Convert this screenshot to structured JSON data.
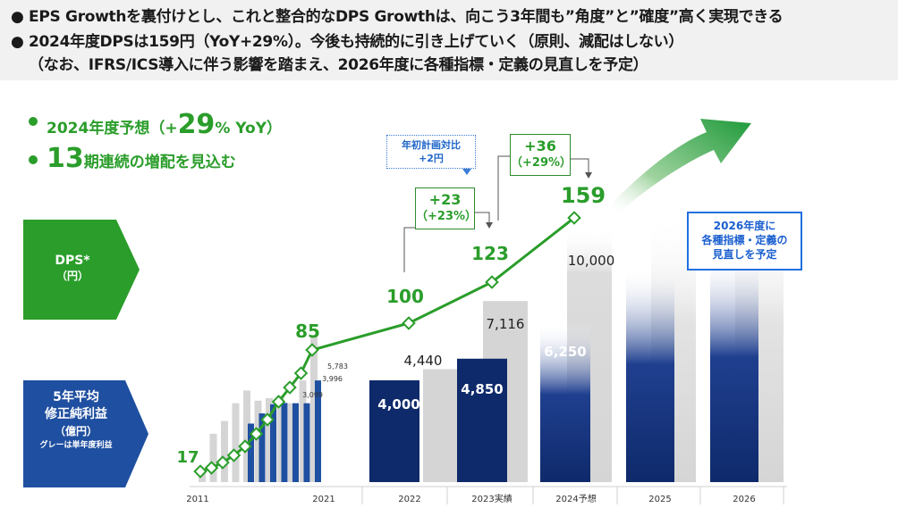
{
  "header": {
    "bullet": "●",
    "line1": "EPS Growthを裏付けとし、これと整合的なDPS Growthは、向こう3年間も”角度”と”確度”高く実現できる",
    "line2": "2024年度DPSは159円（YoY+29%）。今後も持続的に引き上げていく（原則、減配はしない）",
    "line3": "（なお、IFRS/ICS導入に伴う影響を踏まえ、2026年度に各種指標・定義の見直しを予定）"
  },
  "key_points": {
    "p1_prefix": "2024年度予想（+",
    "p1_big": "29",
    "p1_unit": "% YoY）",
    "p2_big": "13",
    "p2_suffix": "期連続の増配を見込む"
  },
  "labels": {
    "dps_title": "DPS*",
    "dps_unit": "（円）",
    "profit_title1": "5年平均",
    "profit_title2": "修正純利益",
    "profit_unit": "（億円）",
    "profit_note": "グレーは単年度利益"
  },
  "annotations": {
    "note_line1": "年初計画対比",
    "note_line2": "+2円",
    "box1_line1": "+23",
    "box1_line2": "（+23%）",
    "box2_line1": "+36",
    "box2_line2": "（+29%）",
    "review_line1": "2026年度に",
    "review_line2": "各種指標・定義の",
    "review_line3": "見直しを予定"
  },
  "colors": {
    "green": "#2a9d2a",
    "navy": "#0f2a6b",
    "gray": "#d5d5d5",
    "blue_box": "#2070e0"
  },
  "chart_data": {
    "type": "bar+line",
    "x": [
      "2011",
      "",
      "",
      "",
      "",
      "",
      "",
      "",
      "",
      "",
      "2021",
      "2022",
      "2023実績",
      "2024予想",
      "2025",
      "2026"
    ],
    "dps": {
      "name": "DPS（円）",
      "values": [
        17,
        19,
        22,
        26,
        31,
        38,
        46,
        56,
        64,
        72,
        85,
        100,
        123,
        159
      ],
      "labels_shown": {
        "0": "17",
        "10": "85",
        "11": "100",
        "12": "123",
        "13": "159"
      }
    },
    "avg_adjusted_net_income": {
      "name": "5年平均修正純利益（億円）",
      "values": [
        null,
        null,
        null,
        null,
        2300,
        2700,
        3060,
        3110,
        3100,
        3099,
        3996,
        4000,
        4850,
        6250,
        null,
        null
      ],
      "labels_shown": {
        "11": "4,000",
        "12": "4,850",
        "13": "6,250"
      }
    },
    "single_year_income": {
      "name": "単年度利益（億円）",
      "values": [
        500,
        1900,
        2400,
        3100,
        3600,
        3200,
        3300,
        3400,
        3099,
        3996,
        5783,
        4440,
        7116,
        10000,
        null,
        null
      ],
      "labels_shown": {
        "8": "3,099",
        "9": "3,996",
        "10": "5,783",
        "11": "4,440",
        "12": "7,116",
        "13": "10,000"
      }
    }
  }
}
